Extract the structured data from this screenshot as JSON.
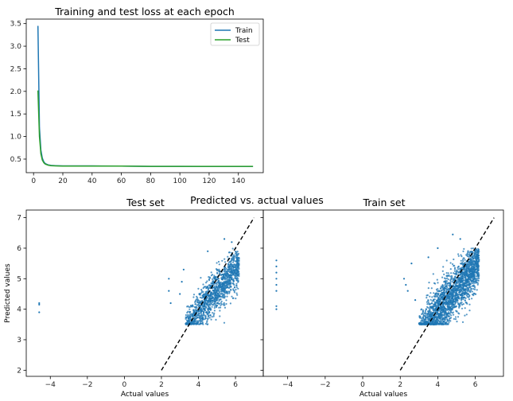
{
  "suptitle": "Predicted vs. actual values",
  "colors": {
    "train": "#1f77b4",
    "test": "#2ca02c",
    "scatter": "#1f77b4",
    "diagonal": "#000000"
  },
  "chart_data": [
    {
      "type": "line",
      "title": "Training and test loss at each epoch",
      "xlabel": "",
      "ylabel": "",
      "xlim": [
        -5,
        157
      ],
      "ylim": [
        0.2,
        3.6
      ],
      "xticks": [
        0,
        20,
        40,
        60,
        80,
        100,
        120,
        140
      ],
      "yticks": [
        0.5,
        1.0,
        1.5,
        2.0,
        2.5,
        3.0,
        3.5
      ],
      "xtick_labels": [
        "0",
        "20",
        "40",
        "60",
        "80",
        "100",
        "120",
        "140"
      ],
      "ytick_labels": [
        "0.5",
        "1.0",
        "1.5",
        "2.0",
        "2.5",
        "3.0",
        "3.5"
      ],
      "legend": "upper-right",
      "series": [
        {
          "name": "Train",
          "color": "#1f77b4",
          "x": [
            3,
            4,
            5,
            6,
            7,
            8,
            10,
            12,
            15,
            20,
            30,
            40,
            60,
            80,
            100,
            120,
            150
          ],
          "y": [
            3.45,
            1.2,
            0.7,
            0.52,
            0.44,
            0.4,
            0.37,
            0.36,
            0.355,
            0.35,
            0.35,
            0.35,
            0.345,
            0.34,
            0.34,
            0.335,
            0.335
          ]
        },
        {
          "name": "Test",
          "color": "#2ca02c",
          "x": [
            3,
            4,
            5,
            6,
            7,
            8,
            10,
            12,
            15,
            20,
            30,
            40,
            60,
            80,
            100,
            120,
            150
          ],
          "y": [
            2.02,
            1.0,
            0.62,
            0.48,
            0.42,
            0.39,
            0.365,
            0.355,
            0.35,
            0.345,
            0.345,
            0.345,
            0.345,
            0.34,
            0.34,
            0.34,
            0.34
          ]
        }
      ]
    },
    {
      "type": "scatter",
      "title": "Test set",
      "xlabel": "Actual values",
      "ylabel": "Predicted values",
      "xlim": [
        -5.3,
        7.5
      ],
      "ylim": [
        1.8,
        7.25
      ],
      "xticks": [
        -4,
        -2,
        0,
        2,
        4,
        6
      ],
      "yticks": [
        2,
        3,
        4,
        5,
        6,
        7
      ],
      "xtick_labels": [
        "−4",
        "−2",
        "0",
        "2",
        "4",
        "6"
      ],
      "ytick_labels": [
        "2",
        "3",
        "4",
        "5",
        "6",
        "7"
      ],
      "diagonal": {
        "x": [
          2,
          7
        ],
        "y": [
          2,
          7
        ],
        "style": "dashed"
      },
      "cloud": {
        "x_range": [
          3.3,
          6.2
        ],
        "y_range": [
          3.5,
          6.0
        ],
        "slope": 0.72,
        "intercept": 1.0,
        "spread": 0.33,
        "n": 1300
      },
      "points": [
        {
          "x": -4.6,
          "y": 4.2
        },
        {
          "x": -4.6,
          "y": 4.15
        },
        {
          "x": -4.6,
          "y": 3.9
        },
        {
          "x": 2.4,
          "y": 5.0
        },
        {
          "x": 2.4,
          "y": 4.6
        },
        {
          "x": 2.5,
          "y": 4.2
        },
        {
          "x": 3.2,
          "y": 5.3
        },
        {
          "x": 3.1,
          "y": 4.9
        },
        {
          "x": 5.4,
          "y": 6.3
        },
        {
          "x": 5.8,
          "y": 6.2
        },
        {
          "x": 4.5,
          "y": 5.9
        },
        {
          "x": 3.0,
          "y": 4.5
        }
      ]
    },
    {
      "type": "scatter",
      "title": "Train set",
      "xlabel": "Actual values",
      "ylabel": "",
      "xlim": [
        -5.3,
        7.5
      ],
      "ylim": [
        1.8,
        7.25
      ],
      "xticks": [
        -4,
        -2,
        0,
        2,
        4,
        6
      ],
      "yticks": [
        2,
        3,
        4,
        5,
        6,
        7
      ],
      "xtick_labels": [
        "−4",
        "−2",
        "0",
        "2",
        "4",
        "6"
      ],
      "ytick_labels": [],
      "diagonal": {
        "x": [
          2,
          7
        ],
        "y": [
          2,
          7
        ],
        "style": "dashed"
      },
      "cloud": {
        "x_range": [
          3.0,
          6.2
        ],
        "y_range": [
          3.5,
          6.0
        ],
        "slope": 0.75,
        "intercept": 0.9,
        "spread": 0.4,
        "n": 2200
      },
      "points": [
        {
          "x": -4.6,
          "y": 5.6
        },
        {
          "x": -4.6,
          "y": 5.4
        },
        {
          "x": -4.6,
          "y": 5.2
        },
        {
          "x": -4.6,
          "y": 5.0
        },
        {
          "x": -4.6,
          "y": 4.8
        },
        {
          "x": -4.6,
          "y": 4.6
        },
        {
          "x": -4.6,
          "y": 4.1
        },
        {
          "x": -4.6,
          "y": 4.0
        },
        {
          "x": 2.2,
          "y": 5.0
        },
        {
          "x": 2.3,
          "y": 4.8
        },
        {
          "x": 2.4,
          "y": 4.6
        },
        {
          "x": 2.6,
          "y": 5.5
        },
        {
          "x": 2.8,
          "y": 4.3
        },
        {
          "x": 4.8,
          "y": 6.45
        },
        {
          "x": 5.2,
          "y": 6.3
        },
        {
          "x": 4.0,
          "y": 6.0
        },
        {
          "x": 3.5,
          "y": 5.7
        }
      ]
    }
  ]
}
